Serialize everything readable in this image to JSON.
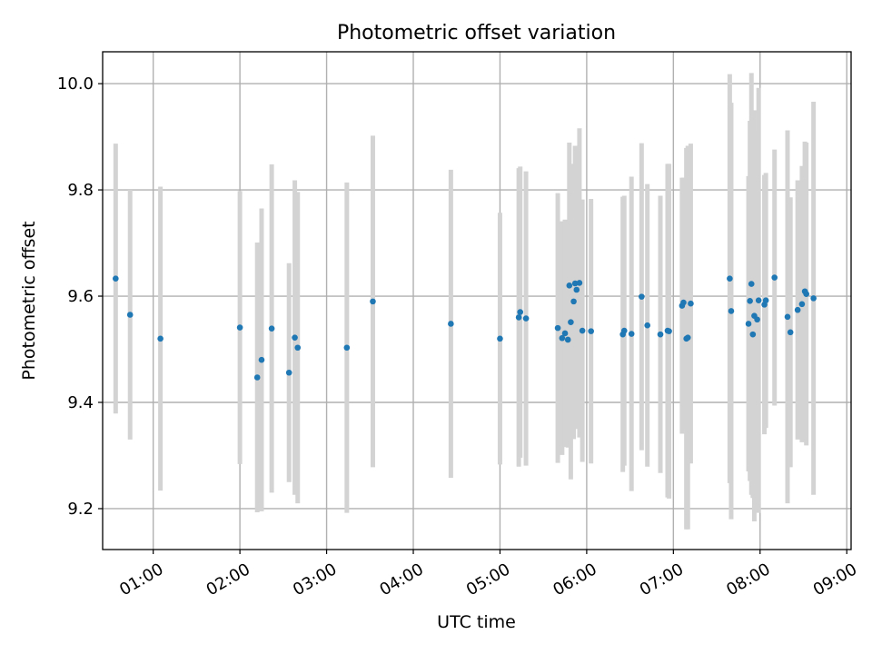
{
  "chart_data": {
    "type": "scatter",
    "title": "Photometric offset variation",
    "xlabel": "UTC time",
    "ylabel": "Photometric offset",
    "xlim": [
      "00:25",
      "09:03"
    ],
    "ylim": [
      9.123,
      10.06
    ],
    "x_ticks": [
      "01:00",
      "02:00",
      "03:00",
      "04:00",
      "05:00",
      "06:00",
      "07:00",
      "08:00",
      "09:00"
    ],
    "y_ticks": [
      9.2,
      9.4,
      9.6,
      9.8,
      10.0
    ],
    "y_tick_labels": [
      "9.2",
      "9.4",
      "9.6",
      "9.8",
      "10.0"
    ],
    "grid": true,
    "marker_color": "#1f77b4",
    "error_bar_color": "#d3d3d3",
    "series": [
      {
        "x": [
          "00:34",
          "00:44",
          "01:05",
          "02:00",
          "02:12",
          "02:15",
          "02:22",
          "02:34",
          "02:38",
          "02:40",
          "03:14",
          "03:32",
          "04:26",
          "05:00",
          "05:13",
          "05:14",
          "05:18",
          "05:40",
          "05:43",
          "05:45",
          "05:47",
          "05:48",
          "05:49",
          "05:51",
          "05:52",
          "05:53",
          "05:55",
          "05:57",
          "06:03",
          "06:25",
          "06:26",
          "06:31",
          "06:38",
          "06:42",
          "06:51",
          "06:56",
          "06:57",
          "07:06",
          "07:07",
          "07:09",
          "07:10",
          "07:12",
          "07:39",
          "07:40",
          "07:52",
          "07:53",
          "07:54",
          "07:55",
          "07:56",
          "07:58",
          "07:59",
          "08:03",
          "08:04",
          "08:10",
          "08:19",
          "08:21",
          "08:26",
          "08:29",
          "08:31",
          "08:32",
          "08:37"
        ],
        "y": [
          9.633,
          9.565,
          9.52,
          9.541,
          9.447,
          9.48,
          9.539,
          9.456,
          9.522,
          9.503,
          9.503,
          9.59,
          9.548,
          9.52,
          9.56,
          9.57,
          9.558,
          9.54,
          9.521,
          9.53,
          9.518,
          9.62,
          9.551,
          9.59,
          9.624,
          9.612,
          9.625,
          9.535,
          9.534,
          9.528,
          9.535,
          9.529,
          9.599,
          9.545,
          9.528,
          9.535,
          9.534,
          9.582,
          9.588,
          9.52,
          9.522,
          9.586,
          9.633,
          9.572,
          9.548,
          9.591,
          9.623,
          9.528,
          9.563,
          9.556,
          9.592,
          9.584,
          9.592,
          9.635,
          9.561,
          9.532,
          9.574,
          9.585,
          9.609,
          9.604,
          9.596
        ],
        "yerr": [
          0.254,
          0.235,
          0.286,
          0.257,
          0.254,
          0.285,
          0.309,
          0.206,
          0.296,
          0.293,
          0.311,
          0.312,
          0.29,
          0.237,
          0.281,
          0.274,
          0.277,
          0.254,
          0.22,
          0.214,
          0.203,
          0.269,
          0.296,
          0.259,
          0.259,
          0.262,
          0.291,
          0.247,
          0.249,
          0.259,
          0.254,
          0.296,
          0.289,
          0.266,
          0.261,
          0.314,
          0.315,
          0.241,
          0.235,
          0.359,
          0.361,
          0.301,
          0.385,
          0.392,
          0.278,
          0.339,
          0.397,
          0.308,
          0.387,
          0.36,
          0.4,
          0.244,
          0.24,
          0.241,
          0.351,
          0.254,
          0.244,
          0.26,
          0.282,
          0.285,
          0.37
        ]
      }
    ]
  }
}
